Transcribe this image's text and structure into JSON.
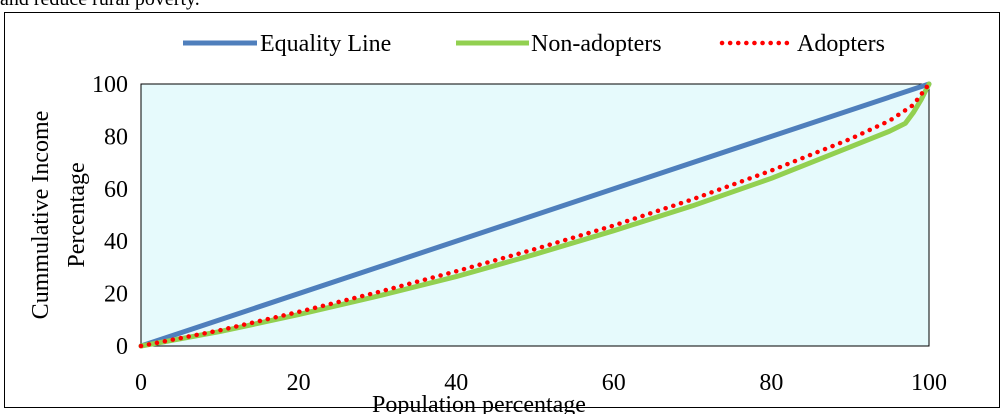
{
  "caption": "and reduce rural poverty.",
  "chart_data": {
    "type": "line",
    "xlabel": "Population  percentage",
    "ylabel": [
      "Cummulative Income",
      "Percentage"
    ],
    "xlim": [
      0,
      100
    ],
    "ylim": [
      0,
      100
    ],
    "xticks": [
      0,
      20,
      40,
      60,
      80,
      100
    ],
    "yticks": [
      0,
      20,
      40,
      60,
      80,
      100
    ],
    "plot_background": "#e6fafc",
    "legend_position": "top",
    "series": [
      {
        "name": "Equality Line",
        "color": "#4f7fbc",
        "style": "solid",
        "x": [
          0,
          100
        ],
        "y": [
          0,
          100
        ]
      },
      {
        "name": "Non-adopters",
        "color": "#92d050",
        "style": "solid",
        "x": [
          0,
          10,
          20,
          30,
          40,
          50,
          60,
          70,
          80,
          90,
          95,
          97,
          98,
          99,
          100
        ],
        "y": [
          0,
          5.5,
          12,
          19,
          26.5,
          35,
          44,
          53.5,
          64,
          76,
          82,
          85,
          89,
          94,
          100
        ]
      },
      {
        "name": "Adopters",
        "color": "#ff0000",
        "style": "dotted",
        "x": [
          0,
          10,
          20,
          30,
          40,
          50,
          60,
          70,
          80,
          90,
          95,
          98,
          100
        ],
        "y": [
          0,
          6,
          13,
          20.5,
          28.5,
          37,
          46,
          56,
          67,
          79,
          86,
          92,
          100
        ]
      }
    ]
  }
}
